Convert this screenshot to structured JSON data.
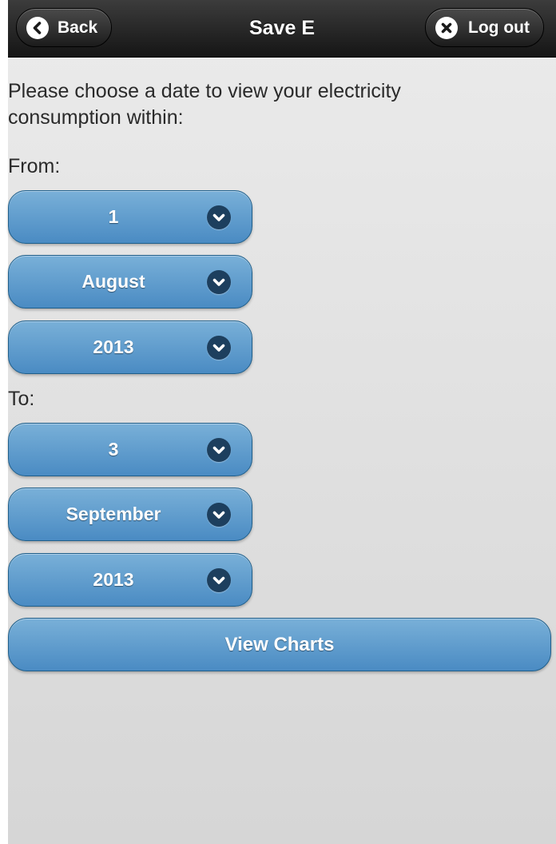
{
  "header": {
    "title": "Save E",
    "back_label": "Back",
    "logout_label": "Log out"
  },
  "intro_text": "Please choose a date to view your electricity consumption within:",
  "from": {
    "label": "From:",
    "day": "1",
    "month": "August",
    "year": "2013"
  },
  "to": {
    "label": "To:",
    "day": "3",
    "month": "September",
    "year": "2013"
  },
  "view_charts_label": "View Charts",
  "icons": {
    "back": "chevron-left-icon",
    "logout": "close-icon",
    "select": "chevron-down-icon"
  },
  "colors": {
    "header_bg": "#1e1e1e",
    "button_blue": "#5b9bcf",
    "page_bg": "#e0e0e0"
  }
}
